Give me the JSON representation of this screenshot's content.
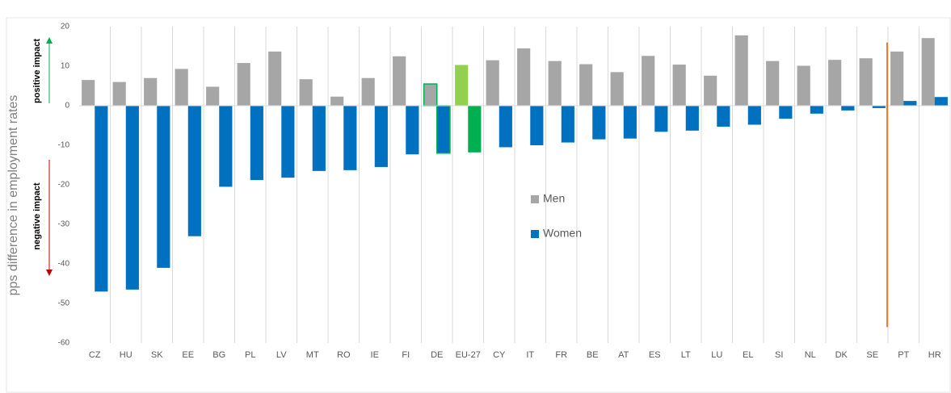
{
  "chart_data": {
    "type": "bar",
    "y_label": "pps difference in employment rates",
    "annotations": {
      "positive": "positive impact",
      "negative": "negative impact"
    },
    "categories": [
      "CZ",
      "HU",
      "SK",
      "EE",
      "BG",
      "PL",
      "LV",
      "MT",
      "RO",
      "IE",
      "FI",
      "DE",
      "EU-27",
      "CY",
      "IT",
      "FR",
      "BE",
      "AT",
      "ES",
      "LT",
      "LU",
      "EL",
      "SI",
      "NL",
      "DK",
      "SE",
      "PT",
      "HR"
    ],
    "series": [
      {
        "name": "Men",
        "color": "#a6a6a6",
        "values": [
          6.5,
          6,
          7,
          9.3,
          4.8,
          10.8,
          13.7,
          6.7,
          2.3,
          7,
          12.5,
          5.5,
          10.3,
          11.5,
          14.5,
          11.3,
          10.5,
          8.5,
          12.6,
          10.4,
          7.6,
          17.8,
          11.3,
          10.1,
          11.6,
          12,
          13.7,
          17.1
        ]
      },
      {
        "name": "Women",
        "color": "#0070c0",
        "values": [
          -47,
          -46.5,
          -41,
          -33,
          -20.5,
          -18.8,
          -18.2,
          -16.5,
          -16.3,
          -15.5,
          -12.3,
          -12,
          -11.8,
          -10.5,
          -10,
          -9.3,
          -8.5,
          -8.3,
          -6.6,
          -6.3,
          -5.3,
          -4.8,
          -3.3,
          -2,
          -1.2,
          -0.6,
          1.2,
          2.2
        ]
      }
    ],
    "highlights": [
      {
        "category": "EU-27",
        "colors": [
          "#92d050",
          "#00b050"
        ]
      },
      {
        "category": "DE",
        "outline": "#00b050"
      }
    ],
    "reference_line": {
      "after": "SE",
      "y": [
        16,
        -56
      ],
      "color": "#ed7d31"
    },
    "ylim": [
      -60,
      20
    ],
    "yticks": [
      20,
      10,
      0,
      -10,
      -20,
      -30,
      -40,
      -50,
      -60
    ],
    "grid": true
  }
}
